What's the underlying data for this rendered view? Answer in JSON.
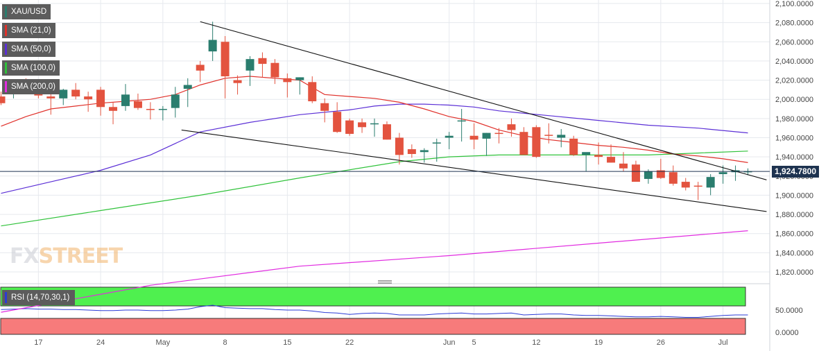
{
  "chart_data": {
    "type": "candlestick",
    "symbol": "XAU/USD",
    "indicators": [
      {
        "name": "SMA (21,0)",
        "color": "#e0302a"
      },
      {
        "name": "SMA (50,0)",
        "color": "#5b2fd6"
      },
      {
        "name": "SMA (100,0)",
        "color": "#2fc23a"
      },
      {
        "name": "SMA (200,0)",
        "color": "#e12be0"
      }
    ],
    "y_axis": {
      "ticks": [
        "2,100.0000",
        "2,080.0000",
        "2,060.0000",
        "2,040.0000",
        "2,020.0000",
        "2,000.0000",
        "1,980.0000",
        "1,960.0000",
        "1,940.0000",
        "1,920.0000",
        "1,900.0000",
        "1,880.0000",
        "1,860.0000",
        "1,840.0000",
        "1,820.0000"
      ],
      "ylim": [
        1815,
        2104
      ]
    },
    "x_axis": {
      "ticks": [
        {
          "label": "17",
          "index": 3
        },
        {
          "label": "24",
          "index": 8
        },
        {
          "label": "May",
          "index": 13
        },
        {
          "label": "8",
          "index": 18
        },
        {
          "label": "15",
          "index": 23
        },
        {
          "label": "22",
          "index": 28
        },
        {
          "label": "Jun",
          "index": 36
        },
        {
          "label": "5",
          "index": 38
        },
        {
          "label": "12",
          "index": 43
        },
        {
          "label": "19",
          "index": 48
        },
        {
          "label": "26",
          "index": 53
        },
        {
          "label": "Jul",
          "index": 58
        }
      ]
    },
    "current_price": 1924.78,
    "current_price_label": "1,924.7800",
    "candles": [
      [
        2003,
        2008,
        1994,
        1996
      ],
      [
        2010,
        2018,
        2001,
        2014
      ],
      [
        2015,
        2022,
        2007,
        2011
      ],
      [
        2010,
        2019,
        2001,
        2004
      ],
      [
        2003,
        2009,
        1984,
        2001
      ],
      [
        2001,
        2011,
        1994,
        2010
      ],
      [
        2010,
        2017,
        2000,
        2003
      ],
      [
        2003,
        2008,
        1987,
        2000
      ],
      [
        2010,
        2013,
        1983,
        1992
      ],
      [
        1992,
        1997,
        1974,
        1988
      ],
      [
        1993,
        2016,
        1988,
        2005
      ],
      [
        1998,
        2006,
        1989,
        1991
      ],
      [
        1990,
        1997,
        1979,
        1989
      ],
      [
        1990,
        1993,
        1978,
        1990
      ],
      [
        1991,
        2013,
        1981,
        2005
      ],
      [
        2011,
        2022,
        1992,
        2015
      ],
      [
        2036,
        2040,
        2018,
        2030
      ],
      [
        2050,
        2081,
        2040,
        2062
      ],
      [
        2060,
        2066,
        2001,
        2024
      ],
      [
        2020,
        2025,
        2005,
        2017
      ],
      [
        2030,
        2045,
        2014,
        2042
      ],
      [
        2043,
        2049,
        2023,
        2037
      ],
      [
        2038,
        2042,
        2016,
        2023
      ],
      [
        2022,
        2027,
        2002,
        2018
      ],
      [
        2020,
        2023,
        2005,
        2023
      ],
      [
        2018,
        2024,
        1996,
        1998
      ],
      [
        1996,
        2001,
        1976,
        1988
      ],
      [
        1987,
        1997,
        1965,
        1966
      ],
      [
        1978,
        1980,
        1962,
        1964
      ],
      [
        1976,
        1980,
        1965,
        1971
      ],
      [
        1974,
        1980,
        1961,
        1975
      ],
      [
        1974,
        1977,
        1958,
        1958
      ],
      [
        1960,
        1965,
        1932,
        1942
      ],
      [
        1948,
        1953,
        1939,
        1943
      ],
      [
        1945,
        1949,
        1934,
        1947
      ],
      [
        1954,
        1959,
        1935,
        1955
      ],
      [
        1960,
        1966,
        1948,
        1962
      ],
      [
        1977,
        1990,
        1956,
        1978
      ],
      [
        1962,
        1975,
        1948,
        1958
      ],
      [
        1959,
        1965,
        1941,
        1965
      ],
      [
        1965,
        1970,
        1954,
        1964
      ],
      [
        1974,
        1980,
        1961,
        1968
      ],
      [
        1966,
        1971,
        1944,
        1942
      ],
      [
        1971,
        1973,
        1939,
        1940
      ],
      [
        1963,
        1975,
        1954,
        1962
      ],
      [
        1960,
        1969,
        1950,
        1963
      ],
      [
        1959,
        1962,
        1941,
        1942
      ],
      [
        1942,
        1944,
        1925,
        1945
      ],
      [
        1942,
        1955,
        1932,
        1940
      ],
      [
        1940,
        1953,
        1934,
        1934
      ],
      [
        1933,
        1945,
        1925,
        1928
      ],
      [
        1932,
        1936,
        1916,
        1914
      ],
      [
        1917,
        1927,
        1912,
        1925
      ],
      [
        1926,
        1938,
        1917,
        1918
      ],
      [
        1924,
        1931,
        1910,
        1912
      ],
      [
        1914,
        1918,
        1905,
        1908
      ],
      [
        1910,
        1914,
        1895,
        1909
      ],
      [
        1908,
        1922,
        1900,
        1919
      ],
      [
        1922,
        1931,
        1912,
        1924
      ],
      [
        1924,
        1931,
        1915,
        1926
      ],
      [
        1925,
        1928,
        1921,
        1925
      ]
    ],
    "sma21": [
      [
        0,
        1972
      ],
      [
        2,
        1982
      ],
      [
        4,
        1990
      ],
      [
        6,
        1993
      ],
      [
        8,
        1996
      ],
      [
        10,
        1998
      ],
      [
        12,
        2000
      ],
      [
        14,
        2005
      ],
      [
        16,
        2015
      ],
      [
        18,
        2022
      ],
      [
        20,
        2024
      ],
      [
        22,
        2022
      ],
      [
        24,
        2020
      ],
      [
        26,
        2005
      ],
      [
        28,
        2003
      ],
      [
        30,
        2001
      ],
      [
        32,
        1997
      ],
      [
        34,
        1990
      ],
      [
        36,
        1982
      ],
      [
        38,
        1977
      ],
      [
        40,
        1968
      ],
      [
        42,
        1962
      ],
      [
        44,
        1958
      ],
      [
        46,
        1955
      ],
      [
        48,
        1952
      ],
      [
        50,
        1950
      ],
      [
        52,
        1947
      ],
      [
        54,
        1943
      ],
      [
        56,
        1941
      ],
      [
        58,
        1938
      ],
      [
        60,
        1934
      ]
    ],
    "sma50": [
      [
        0,
        1902
      ],
      [
        4,
        1914
      ],
      [
        8,
        1926
      ],
      [
        12,
        1942
      ],
      [
        16,
        1966
      ],
      [
        20,
        1976
      ],
      [
        24,
        1984
      ],
      [
        28,
        1989
      ],
      [
        30,
        1993
      ],
      [
        32,
        1995
      ],
      [
        34,
        1995
      ],
      [
        36,
        1994
      ],
      [
        38,
        1992
      ],
      [
        40,
        1988
      ],
      [
        44,
        1983
      ],
      [
        48,
        1978
      ],
      [
        52,
        1973
      ],
      [
        56,
        1970
      ],
      [
        60,
        1965
      ]
    ],
    "sma100": [
      [
        0,
        1868
      ],
      [
        8,
        1884
      ],
      [
        16,
        1900
      ],
      [
        24,
        1918
      ],
      [
        32,
        1935
      ],
      [
        36,
        1940
      ],
      [
        40,
        1942
      ],
      [
        44,
        1942
      ],
      [
        48,
        1942
      ],
      [
        52,
        1942
      ],
      [
        56,
        1944
      ],
      [
        60,
        1946
      ]
    ],
    "sma200": [
      [
        0,
        1778
      ],
      [
        12,
        1806
      ],
      [
        24,
        1826
      ],
      [
        36,
        1837
      ],
      [
        48,
        1850
      ],
      [
        60,
        1863
      ]
    ],
    "trendlines": [
      {
        "from": [
          16,
          2081
        ],
        "to": [
          61.5,
          1916
        ],
        "color": "#111111"
      },
      {
        "from": [
          14.5,
          1968
        ],
        "to": [
          61.5,
          1883
        ],
        "color": "#111111"
      }
    ],
    "rsi": {
      "label": "RSI (14,70,30,1)",
      "axis_ticks": [
        "50.0000",
        "0.0000"
      ],
      "ylim": [
        0,
        100
      ],
      "overbought": 70,
      "oversold": 30,
      "overbought_color": "#4ff04f",
      "oversold_color": "#f77b7b",
      "line_color": "#2b3bd6",
      "values": [
        51,
        52,
        53,
        52,
        52,
        51,
        51,
        50,
        49,
        49,
        50,
        50,
        49,
        49,
        50,
        52,
        57,
        60,
        55,
        54,
        53,
        53,
        51,
        50,
        50,
        48,
        45,
        44,
        41,
        43,
        44,
        43,
        40,
        40,
        40,
        42,
        43,
        44,
        42,
        42,
        43,
        44,
        40,
        41,
        42,
        42,
        40,
        39,
        39,
        38,
        37,
        36,
        36,
        37,
        36,
        35,
        35,
        37,
        39,
        40,
        40
      ]
    },
    "watermark": {
      "part1": "FX",
      "part2": "STREET"
    }
  }
}
